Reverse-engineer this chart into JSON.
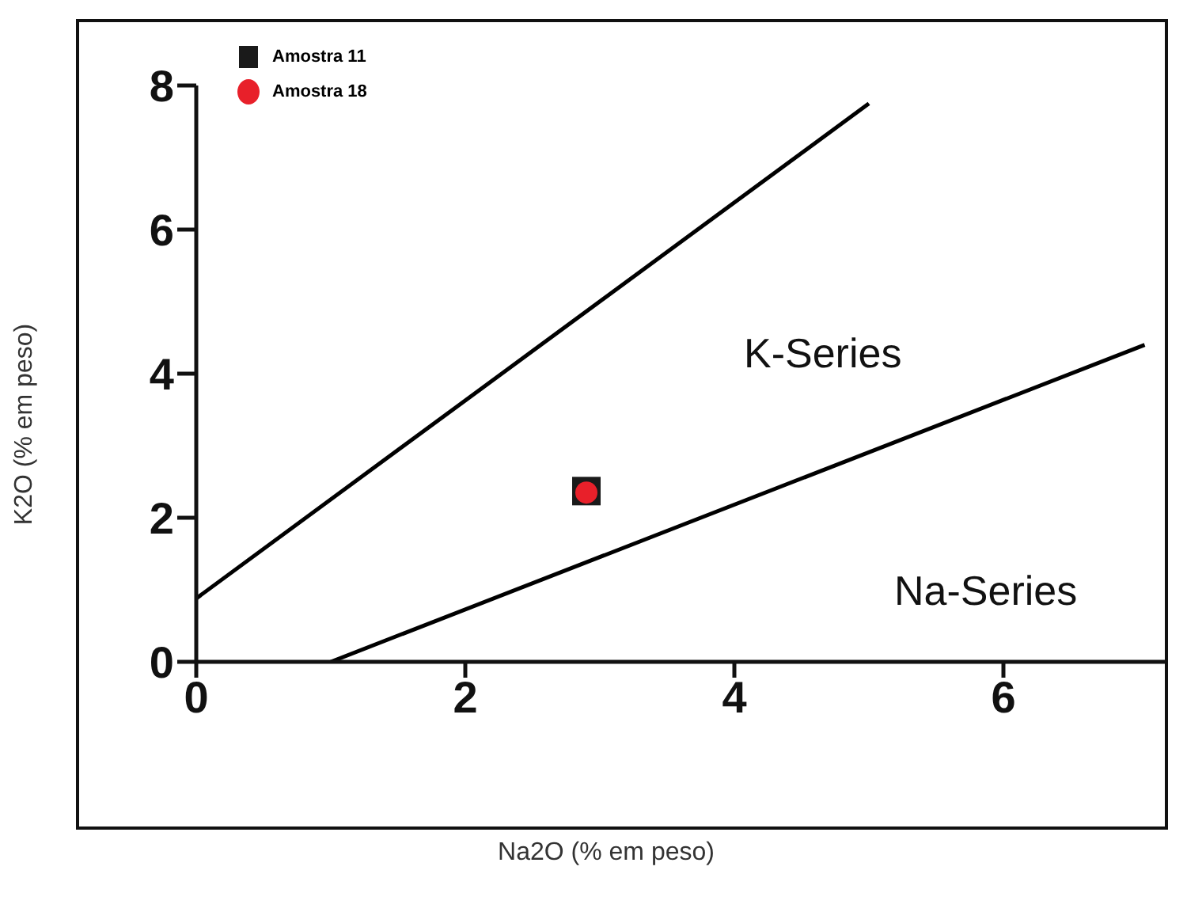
{
  "chart_data": {
    "type": "scatter",
    "xlabel": "Na2O (% em peso)",
    "ylabel": "K2O (% em peso)",
    "xlim": [
      0,
      7.2
    ],
    "ylim": [
      0,
      8
    ],
    "xticks": [
      0,
      2,
      4,
      6
    ],
    "yticks": [
      0,
      2,
      4,
      6,
      8
    ],
    "grid": false,
    "legend": "top left",
    "series": [
      {
        "name": "Amostra 11",
        "type": "scatter",
        "marker": "square",
        "color": "#1a1a1a",
        "x": [
          2.9
        ],
        "values": [
          2.37
        ]
      },
      {
        "name": "Amostra 18",
        "type": "scatter",
        "marker": "circle",
        "color": "#e8202a",
        "x": [
          2.9
        ],
        "values": [
          2.35
        ]
      },
      {
        "type": "line",
        "color": "#000000",
        "x": [
          0,
          5
        ],
        "values": [
          0.88,
          7.75
        ]
      },
      {
        "type": "line",
        "color": "#000000",
        "x": [
          1,
          7.05
        ],
        "values": [
          0,
          4.4
        ]
      }
    ],
    "annotations": [
      "K-Series",
      "Na-Series"
    ]
  }
}
